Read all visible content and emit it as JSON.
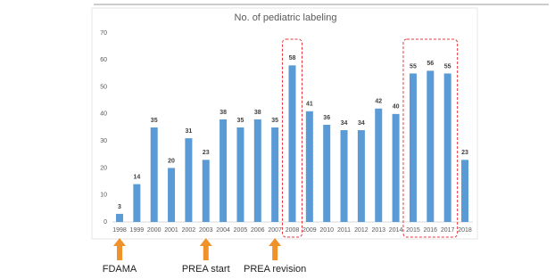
{
  "chart_data": {
    "type": "bar",
    "title": "No. of pediatric labeling",
    "categories": [
      "1998",
      "1999",
      "2000",
      "2001",
      "2002",
      "2003",
      "2004",
      "2005",
      "2006",
      "2007",
      "2008",
      "2009",
      "2010",
      "2011",
      "2012",
      "2013",
      "2014",
      "2015",
      "2016",
      "2017",
      "2018"
    ],
    "values": [
      3,
      14,
      35,
      20,
      31,
      23,
      38,
      35,
      38,
      35,
      58,
      41,
      36,
      34,
      34,
      42,
      40,
      55,
      56,
      55,
      23
    ],
    "color": "#5b9bd5",
    "ylim": [
      0,
      70
    ],
    "yticks": [
      0,
      10,
      20,
      30,
      40,
      50,
      60,
      70
    ],
    "grid": false,
    "annotations": [
      "FDAMA",
      "PREA start",
      "PREA revision"
    ]
  }
}
